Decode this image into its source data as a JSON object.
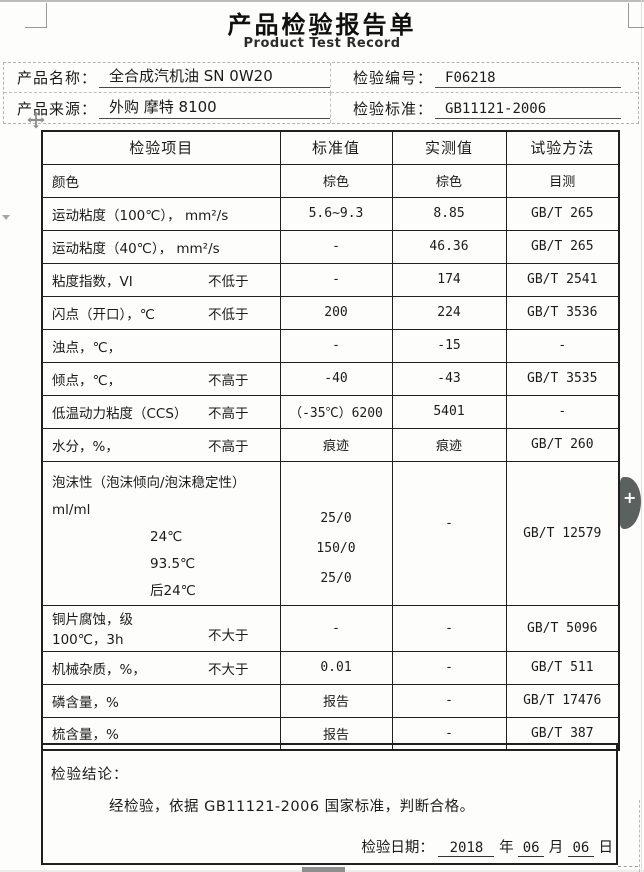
{
  "page": {
    "title_cn": "产品检验报告单",
    "title_en": "Product Test Record"
  },
  "info": {
    "fields": [
      {
        "label": "产品名称：",
        "value": "全合成汽机油  SN 0W20"
      },
      {
        "label": "检验编号：",
        "value": "F06218"
      },
      {
        "label": "产品来源：",
        "value": "外购 摩特 8100"
      },
      {
        "label": "检验标准：",
        "value": "GB11121-2006"
      }
    ]
  },
  "table": {
    "headers": [
      "检验项目",
      "标准值",
      "实测值",
      "试验方法"
    ],
    "rows": [
      {
        "item": "颜色",
        "std": "棕色",
        "measured": "棕色",
        "method": "目测"
      },
      {
        "item": "运动粘度（100℃），  mm²/s",
        "std": "5.6~9.3",
        "measured": "8.85",
        "method": "GB/T 265"
      },
      {
        "item": "运动粘度（40℃），  mm²/s",
        "std": "-",
        "measured": "46.36",
        "method": "GB/T 265"
      },
      {
        "item": "粘度指数，VI",
        "qualifier": "不低于",
        "std": "-",
        "measured": "174",
        "method": "GB/T 2541"
      },
      {
        "item": "闪点（开口），℃",
        "qualifier": "不低于",
        "std": "200",
        "measured": "224",
        "method": "GB/T 3536"
      },
      {
        "item": "浊点，℃，",
        "std": "-",
        "measured": "-15",
        "method": "-"
      },
      {
        "item": "倾点，℃，",
        "qualifier": "不高于",
        "std": "-40",
        "measured": "-43",
        "method": "GB/T 3535"
      },
      {
        "item": "低温动力粘度（CCS）",
        "qualifier": "不高于",
        "std": "（-35℃）6200",
        "measured": "5401",
        "method": "-"
      },
      {
        "item": "水分，%，",
        "qualifier": "不高于",
        "std": "痕迹",
        "measured": "痕迹",
        "method": "GB/T 260"
      },
      {
        "type": "foam",
        "item_lines": [
          "泡沫性（泡沫倾向/泡沫稳定性）",
          "ml/ml"
        ],
        "temps": [
          "24℃",
          "93.5℃",
          "后24℃"
        ],
        "std_lines": [
          "25/0",
          "150/0",
          "25/0"
        ],
        "measured": "-",
        "method": "GB/T 12579"
      },
      {
        "type": "tall",
        "item_lines": [
          "铜片腐蚀，级",
          "100℃，3h"
        ],
        "qualifier": "不大于",
        "std": "-",
        "measured": "-",
        "method": "GB/T 5096"
      },
      {
        "item": "机械杂质，%，",
        "qualifier": "不大于",
        "std": "0.01",
        "measured": "-",
        "method": "GB/T 511"
      },
      {
        "item": "磷含量，%",
        "std": "报告",
        "measured": "-",
        "method": "GB/T 17476"
      },
      {
        "item": "梳含量，%",
        "std": "报告",
        "measured": "-",
        "method": "GB/T 387"
      }
    ]
  },
  "conclusion": {
    "label": "检验结论：",
    "text": "经检验，依据 GB11121-2006 国家标准，判断合格。",
    "date_label": "检验日期：",
    "date": {
      "year": "2018",
      "year_unit": "年",
      "month": "06",
      "month_unit": "月",
      "day": "06",
      "day_unit": "日"
    }
  },
  "widgets": {
    "plus_label": "+"
  },
  "colors": {
    "plus_tab": "#5b615f",
    "table_border": "#1f1f1f"
  }
}
